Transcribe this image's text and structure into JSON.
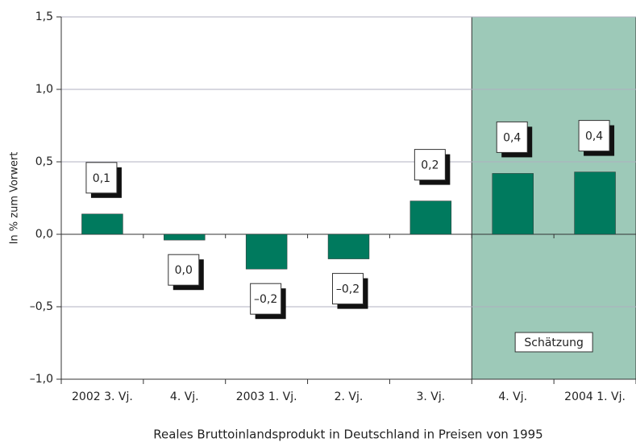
{
  "chart_data": {
    "type": "bar",
    "categories": [
      "2002 3. Vj.",
      "4. Vj.",
      "2003 1. Vj.",
      "2. Vj.",
      "3. Vj.",
      "4. Vj.",
      "2004 1. Vj."
    ],
    "values": [
      0.14,
      -0.04,
      -0.24,
      -0.17,
      0.23,
      0.42,
      0.43
    ],
    "value_labels": [
      "0,1",
      "0,0",
      "–0,2",
      "–0,2",
      "0,2",
      "0,4",
      "0,4"
    ],
    "color": "#007a5e",
    "ylim": [
      -1.0,
      1.5
    ],
    "yticks": [
      {
        "value": -1.0,
        "label": "–1,0"
      },
      {
        "value": -0.5,
        "label": "–0,5"
      },
      {
        "value": 0,
        "label": "0,0"
      },
      {
        "value": 0.5,
        "label": "0,5"
      },
      {
        "value": 1.0,
        "label": "1,0"
      },
      {
        "value": 1.5,
        "label": "1,5"
      }
    ],
    "ylabel": "In % zum Vorwert",
    "xlabel": "Reales Bruttoinlandsprodukt in Deutschland in Preisen von 1995",
    "grid": true,
    "shade": {
      "from_index": 5,
      "label": "Schätzung",
      "color": "#9dc9b8"
    }
  }
}
